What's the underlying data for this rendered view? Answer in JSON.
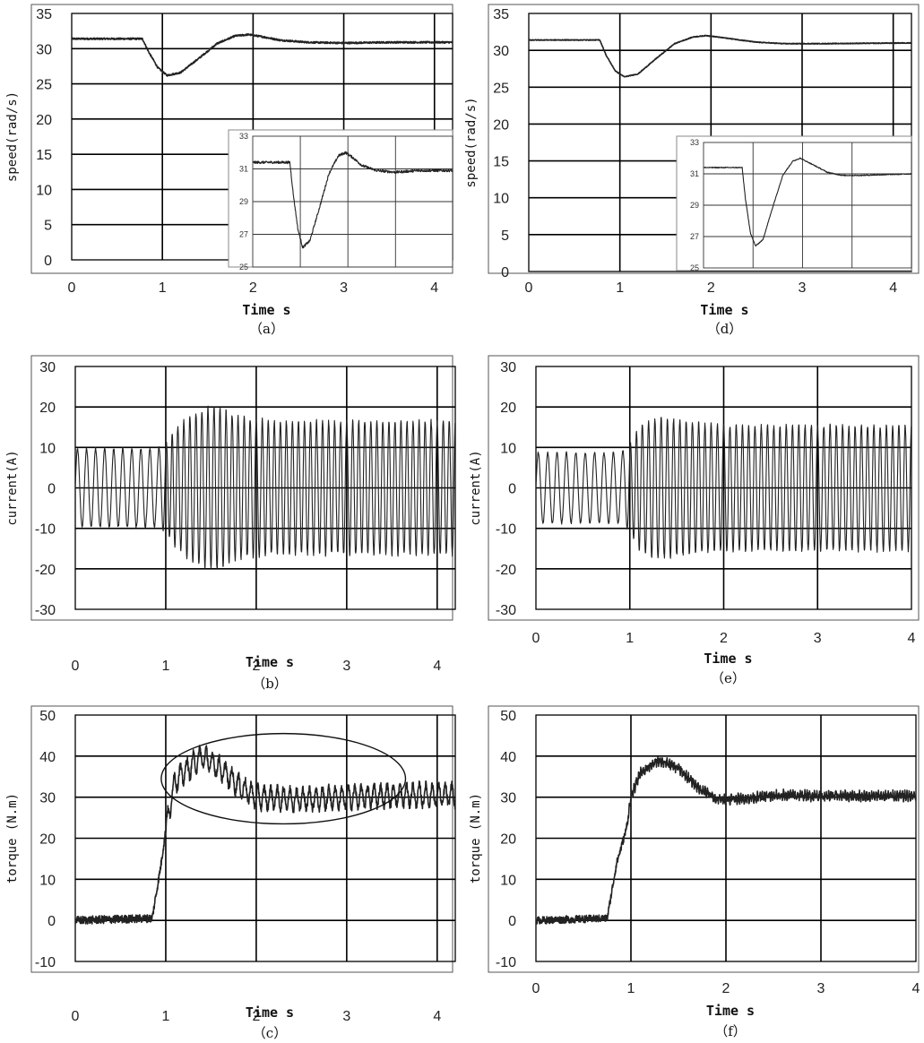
{
  "chart_data": [
    {
      "id": "a",
      "type": "line",
      "caption": "（a）",
      "title": "",
      "xlabel": "Time s",
      "ylabel": "speed(rad/s)",
      "xlim": [
        0,
        4.2
      ],
      "ylim": [
        0,
        35
      ],
      "xticks": [
        "0",
        "1",
        "2",
        "3",
        "4"
      ],
      "yticks": [
        "0",
        "5",
        "10",
        "15",
        "20",
        "25",
        "30",
        "35"
      ],
      "grid": true,
      "series": [
        {
          "x": [
            0,
            0.78,
            0.85,
            0.95,
            1.05,
            1.2,
            1.4,
            1.6,
            1.8,
            1.95,
            2.1,
            2.3,
            2.6,
            3.0,
            3.5,
            4.2
          ],
          "y": [
            31.4,
            31.4,
            29.5,
            27.3,
            26.2,
            26.6,
            28.6,
            30.7,
            31.8,
            32.0,
            31.7,
            31.2,
            30.9,
            30.8,
            30.9,
            30.9
          ],
          "noise": 0.12
        }
      ],
      "inset": {
        "xlim": [
          0,
          4.2
        ],
        "ylim": [
          25,
          33
        ],
        "yticks": [
          "25",
          "27",
          "29",
          "31",
          "33"
        ],
        "series": [
          {
            "x": [
              0,
              0.78,
              0.85,
              0.95,
              1.05,
              1.2,
              1.4,
              1.6,
              1.8,
              1.95,
              2.1,
              2.3,
              2.6,
              3.0,
              3.5,
              4.2
            ],
            "y": [
              31.4,
              31.4,
              29.5,
              27.3,
              26.2,
              26.6,
              28.6,
              30.7,
              31.8,
              32.0,
              31.7,
              31.2,
              30.9,
              30.8,
              30.9,
              30.9
            ],
            "noise": 0.08
          }
        ]
      }
    },
    {
      "id": "b",
      "type": "line",
      "caption": "（b）",
      "title": "",
      "xlabel": "Time s",
      "ylabel": "current(A)",
      "xlim": [
        0,
        4.2
      ],
      "ylim": [
        -30,
        30
      ],
      "xticks": [
        "0",
        "1",
        "2",
        "3",
        "4"
      ],
      "yticks": [
        "-30",
        "-20",
        "-10",
        "0",
        "10",
        "20",
        "30"
      ],
      "grid": true,
      "series": [
        {
          "type": "oscillation",
          "x": [
            0,
            0.9,
            1.0,
            1.1,
            1.3,
            1.55,
            1.8,
            2.2,
            3.0,
            4.2
          ],
          "amplitude": [
            10,
            10,
            11,
            15,
            19,
            21,
            18,
            17,
            17,
            17
          ],
          "cycles_per_s": [
            10,
            10,
            13,
            15,
            15,
            15,
            15,
            15,
            15,
            15
          ]
        }
      ]
    },
    {
      "id": "c",
      "type": "line",
      "caption": "（c）",
      "title": "",
      "xlabel": "Time s",
      "ylabel": "torque (N.m)",
      "xlim": [
        0,
        4.2
      ],
      "ylim": [
        -10,
        50
      ],
      "xticks": [
        "0",
        "1",
        "2",
        "3",
        "4"
      ],
      "yticks": [
        "-10",
        "0",
        "10",
        "20",
        "30",
        "40",
        "50"
      ],
      "grid": true,
      "series": [
        {
          "x": [
            0,
            0.85,
            0.95,
            1.0,
            1.1,
            1.2,
            1.4,
            1.6,
            1.8,
            2.0,
            2.5,
            3.0,
            3.5,
            4.2
          ],
          "y": [
            0,
            0.5,
            14,
            22,
            34,
            36,
            40,
            37,
            33,
            30,
            29.5,
            30,
            30.5,
            30.5
          ],
          "ripple": 2.5,
          "ripple_cycles_per_s": 14,
          "noise": 1.0
        }
      ],
      "annotation": {
        "type": "ellipse",
        "cx": 2.3,
        "cy": 34.5,
        "rx": 1.35,
        "ry": 11
      }
    },
    {
      "id": "d",
      "type": "line",
      "caption": "（d）",
      "title": "",
      "xlabel": "Time s",
      "ylabel": "speed(rad/s)",
      "xlim": [
        0,
        4.2
      ],
      "ylim": [
        0,
        35
      ],
      "xticks": [
        "0",
        "1",
        "2",
        "3",
        "4"
      ],
      "yticks": [
        "0",
        "5",
        "10",
        "15",
        "20",
        "25",
        "30",
        "35"
      ],
      "grid": true,
      "series": [
        {
          "x": [
            0,
            0.78,
            0.85,
            0.95,
            1.05,
            1.2,
            1.4,
            1.6,
            1.8,
            1.95,
            2.2,
            2.5,
            2.8,
            3.2,
            4.2
          ],
          "y": [
            31.4,
            31.4,
            29.3,
            27.2,
            26.4,
            26.8,
            28.9,
            30.9,
            31.8,
            32.0,
            31.6,
            31.1,
            30.9,
            30.9,
            31.0
          ],
          "noise": 0.05
        }
      ],
      "inset": {
        "xlim": [
          0,
          4.2
        ],
        "ylim": [
          25,
          33
        ],
        "yticks": [
          "25",
          "27",
          "29",
          "31",
          "33"
        ],
        "series": [
          {
            "x": [
              0,
              0.78,
              0.85,
              0.95,
              1.05,
              1.2,
              1.4,
              1.6,
              1.8,
              1.95,
              2.2,
              2.5,
              2.8,
              3.2,
              4.2
            ],
            "y": [
              31.4,
              31.4,
              29.3,
              27.2,
              26.4,
              26.8,
              28.9,
              30.9,
              31.8,
              32.0,
              31.6,
              31.1,
              30.9,
              30.9,
              31.0
            ],
            "noise": 0.03
          }
        ]
      }
    },
    {
      "id": "e",
      "type": "line",
      "caption": "（e）",
      "title": "",
      "xlabel": "Time s",
      "ylabel": "current(A)",
      "xlim": [
        0,
        4.0
      ],
      "ylim": [
        -30,
        30
      ],
      "xticks": [
        "0",
        "1",
        "2",
        "3",
        "4"
      ],
      "yticks": [
        "-30",
        "-20",
        "-10",
        "0",
        "10",
        "20",
        "30"
      ],
      "grid": true,
      "series": [
        {
          "type": "oscillation",
          "x": [
            0,
            0.9,
            1.0,
            1.1,
            1.3,
            1.6,
            2.0,
            3.0,
            4.0
          ],
          "amplitude": [
            9,
            9,
            11,
            16,
            18,
            17,
            16,
            16,
            16
          ],
          "cycles_per_s": [
            10,
            10,
            13,
            15,
            15,
            15,
            15,
            15,
            15
          ]
        }
      ]
    },
    {
      "id": "f",
      "type": "line",
      "caption": "（f）",
      "title": "",
      "xlabel": "Time s",
      "ylabel": "torque (N.m)",
      "xlim": [
        0,
        4.0
      ],
      "ylim": [
        -10,
        50
      ],
      "xticks": [
        "0",
        "1",
        "2",
        "3",
        "4"
      ],
      "yticks": [
        "-10",
        "0",
        "10",
        "20",
        "30",
        "40",
        "50"
      ],
      "grid": true,
      "series": [
        {
          "x": [
            0,
            0.75,
            0.85,
            0.95,
            1.0,
            1.1,
            1.3,
            1.5,
            1.7,
            1.9,
            2.2,
            2.6,
            3.0,
            4.0
          ],
          "y": [
            0,
            0.5,
            14,
            22,
            30,
            36,
            39,
            37,
            32.5,
            29.5,
            29.7,
            30.5,
            30.3,
            30.3
          ],
          "ripple": 0.6,
          "ripple_cycles_per_s": 40,
          "noise": 0.9
        }
      ]
    }
  ]
}
